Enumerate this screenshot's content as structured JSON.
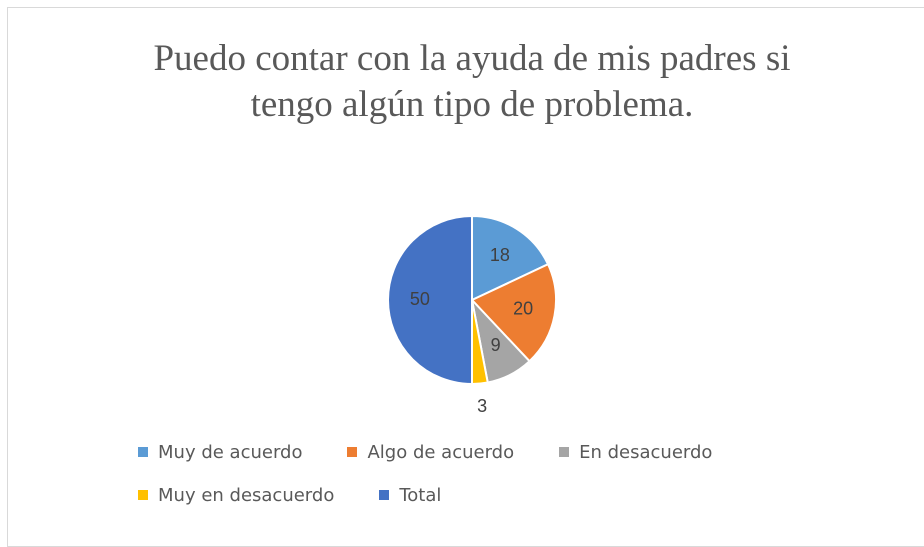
{
  "chart_data": {
    "type": "pie",
    "title": "Puedo contar con la ayuda de mis padres si tengo algún tipo de problema.",
    "categories": [
      "Muy de acuerdo",
      "Algo de acuerdo",
      "En desacuerdo",
      "Muy en desacuerdo",
      "Total"
    ],
    "values": [
      18,
      20,
      9,
      3,
      50
    ],
    "colors": [
      "#5b9bd5",
      "#ed7d31",
      "#a5a5a5",
      "#ffc000",
      "#4472c4"
    ],
    "legend": "bottom"
  }
}
